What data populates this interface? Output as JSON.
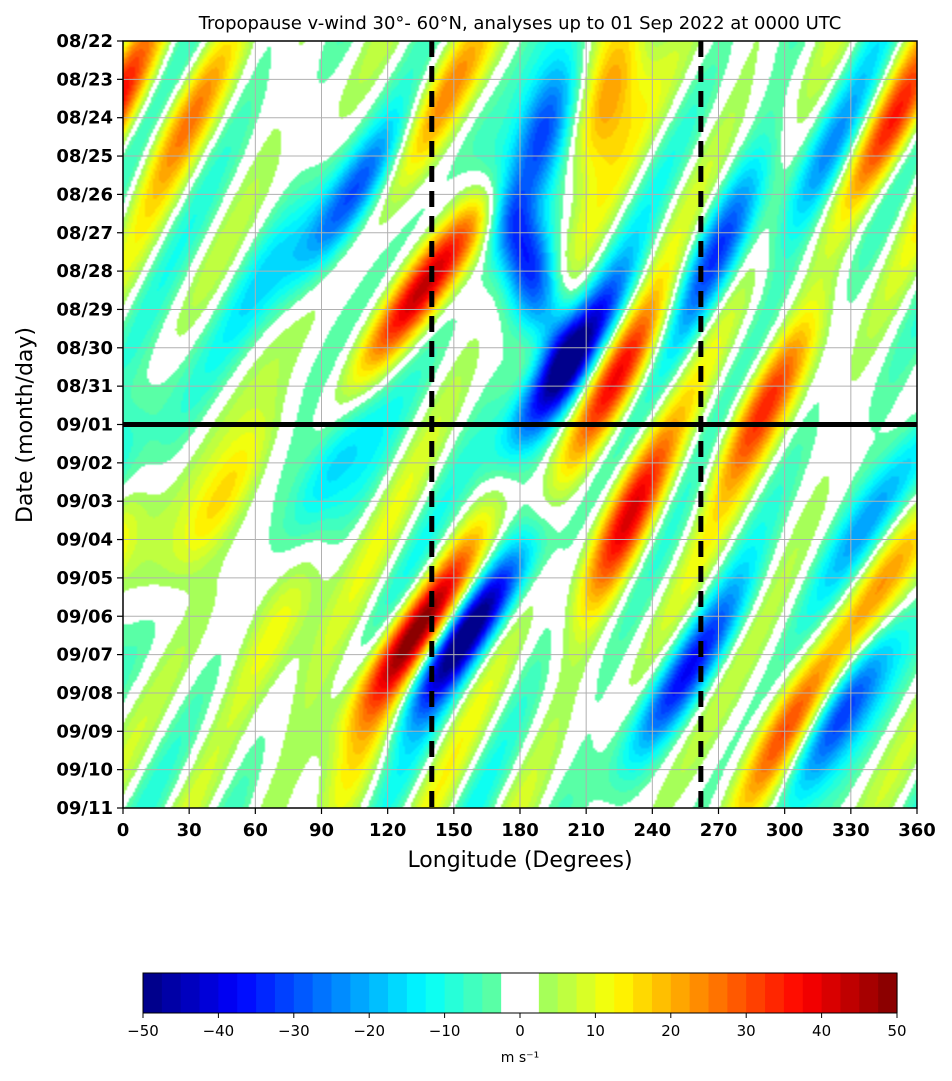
{
  "chart_data": {
    "type": "heatmap",
    "title": "Tropopause v-wind 30°- 60°N, analyses up to 01 Sep 2022 at 0000 UTC",
    "xlabel": "Longitude (Degrees)",
    "ylabel": "Date (month/day)",
    "x_ticks": [
      "0",
      "30",
      "60",
      "90",
      "120",
      "150",
      "180",
      "210",
      "240",
      "270",
      "300",
      "330",
      "360"
    ],
    "x_range": [
      0,
      360
    ],
    "y_ticks": [
      "08/22",
      "08/23",
      "08/24",
      "08/25",
      "08/26",
      "08/27",
      "08/28",
      "08/29",
      "08/30",
      "08/31",
      "09/01",
      "09/02",
      "09/03",
      "09/04",
      "09/05",
      "09/06",
      "09/07",
      "09/08",
      "09/09",
      "09/10",
      "09/11"
    ],
    "y_range_days_from_top": [
      0,
      20
    ],
    "grid": true,
    "analysis_line_date": "09/01",
    "dashed_longitudes": [
      140,
      262
    ],
    "colorbar": {
      "ticks": [
        "−50",
        "−40",
        "−30",
        "−20",
        "−10",
        "0",
        "10",
        "20",
        "30",
        "40",
        "50"
      ],
      "range": [
        -50,
        50
      ],
      "step": 2.5,
      "blank_range": [
        -2.5,
        2.5
      ],
      "label": "m s⁻¹",
      "colormap": "jet"
    },
    "features": [
      {
        "lon": 28,
        "day": 2,
        "value": 18,
        "trend": -1.5
      },
      {
        "lon": 45,
        "day": 12,
        "value": 18,
        "trend": -1.6
      },
      {
        "lon": 65,
        "day": 6,
        "value": -10,
        "trend": -1.5
      },
      {
        "lon": 105,
        "day": 4,
        "value": -30,
        "trend": -1.8
      },
      {
        "lon": 138,
        "day": 6.3,
        "value": 40,
        "trend": -2.0
      },
      {
        "lon": 145,
        "day": 1.5,
        "value": 22,
        "trend": -1.5
      },
      {
        "lon": 190,
        "day": 2.5,
        "value": -40,
        "trend": -1.0
      },
      {
        "lon": 185,
        "day": 6,
        "value": -30,
        "trend": 0.8
      },
      {
        "lon": 200,
        "day": 8.5,
        "value": -45,
        "trend": -1.8
      },
      {
        "lon": 220,
        "day": 1.5,
        "value": 32,
        "trend": -1.0
      },
      {
        "lon": 225,
        "day": 8.8,
        "value": 30,
        "trend": -1.6
      },
      {
        "lon": 228,
        "day": 12.5,
        "value": 32,
        "trend": -1.2
      },
      {
        "lon": 270,
        "day": 5.5,
        "value": -25,
        "trend": -1.3
      },
      {
        "lon": 290,
        "day": 9.5,
        "value": 28,
        "trend": -1.5
      },
      {
        "lon": 255,
        "day": 16.5,
        "value": -30,
        "trend": -1.8
      },
      {
        "lon": 300,
        "day": 18,
        "value": 30,
        "trend": -1.5
      },
      {
        "lon": 325,
        "day": 17.5,
        "value": -35,
        "trend": -1.6
      },
      {
        "lon": 130,
        "day": 15.5,
        "value": 40,
        "trend": -2.0
      },
      {
        "lon": 155,
        "day": 15.5,
        "value": -45,
        "trend": -2.0
      },
      {
        "lon": 338,
        "day": 12.5,
        "value": -22,
        "trend": -1.6
      },
      {
        "lon": 352,
        "day": 2,
        "value": 28,
        "trend": -1.5
      },
      {
        "lon": 345,
        "day": 14,
        "value": 22,
        "trend": -1.5
      },
      {
        "lon": 320,
        "day": 3,
        "value": -18,
        "trend": -1.5
      },
      {
        "lon": 95,
        "day": 11,
        "value": -22,
        "trend": -1.5
      },
      {
        "lon": 110,
        "day": 18,
        "value": 12,
        "trend": -1.5
      },
      {
        "lon": 15,
        "day": 9,
        "value": -8,
        "trend": -1.5
      },
      {
        "lon": 75,
        "day": 15,
        "value": 14,
        "trend": -1.5
      }
    ]
  }
}
